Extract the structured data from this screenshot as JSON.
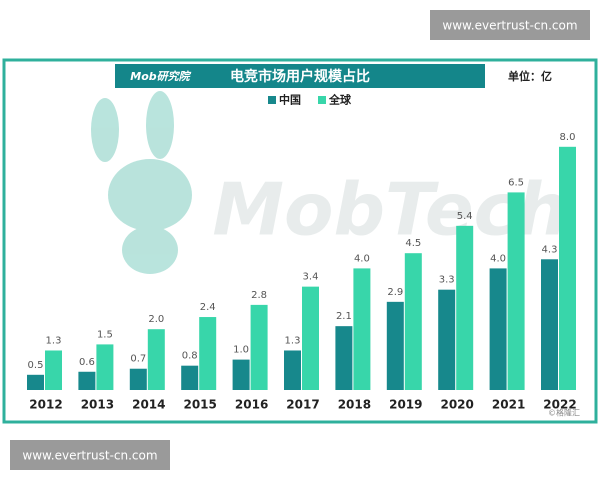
{
  "site_tag_top": "www.evertrust-cn.com",
  "site_tag_bottom": "www.evertrust-cn.com",
  "logo": "Mob研究院",
  "watermark": "MobTech",
  "source_mark": "©格隆汇",
  "chart_data": {
    "type": "bar",
    "title": "电竞市场用户规模占比",
    "unit": "单位：亿",
    "categories": [
      "2012",
      "2013",
      "2014",
      "2015",
      "2016",
      "2017",
      "2018",
      "2019",
      "2020",
      "2021",
      "2022"
    ],
    "series": [
      {
        "name": "中国",
        "color": "#17888c",
        "values": [
          0.5,
          0.6,
          0.7,
          0.8,
          1.0,
          1.3,
          2.1,
          2.9,
          3.3,
          4.0,
          4.3
        ],
        "value_labels": [
          "0.5",
          "0.6",
          "0.7",
          "0.8",
          "1.0",
          "1.3",
          "2.1",
          "2.9",
          "3.3",
          "4.0",
          "4.3"
        ]
      },
      {
        "name": "全球",
        "color": "#38d6aa",
        "values": [
          1.3,
          1.5,
          2.0,
          2.4,
          2.8,
          3.4,
          4.0,
          4.5,
          5.4,
          6.5,
          8.0
        ],
        "value_labels": [
          "1.3",
          "1.5",
          "2.0",
          "2.4",
          "2.8",
          "3.4",
          "4.0",
          "4.5",
          "5.4",
          "6.5",
          "8.0"
        ]
      }
    ]
  }
}
